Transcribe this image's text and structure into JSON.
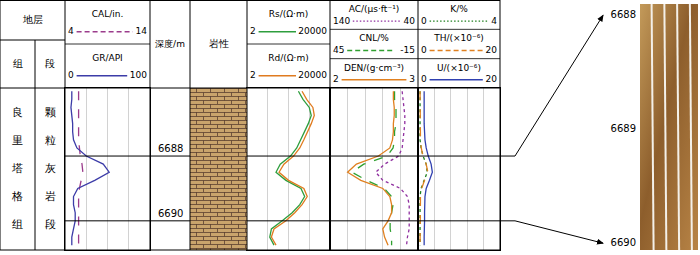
{
  "chart_data": {
    "type": "well_log",
    "header": {
      "strata": "地层",
      "formation": "组",
      "member": "段",
      "depth": "深度/m",
      "lithology": "岩性"
    },
    "zones": [
      {
        "formation": "良里塔格组",
        "member": "颗粒灰岩段"
      }
    ],
    "depth": [
      6686,
      6686.25,
      6686.5,
      6686.75,
      6687,
      6687.25,
      6687.5,
      6687.75,
      6688,
      6688.25,
      6688.5,
      6688.75,
      6689,
      6689.25,
      6689.5,
      6689.75,
      6690,
      6690.25,
      6690.5,
      6690.75
    ],
    "ylim": [
      6685.9,
      6690.9
    ],
    "yticks": [
      6688,
      6690
    ],
    "tracks": [
      {
        "grid": true,
        "tick_labels": false,
        "xticks": [
          4,
          6.5,
          9,
          11.5,
          14
        ],
        "series": [
          {
            "name": "CAL/in.",
            "color": "#9b3c8c",
            "line_style": "dash",
            "xlim": [
              4,
              14
            ],
            "values": [
              5.6,
              5.6,
              5.6,
              5.6,
              5.6,
              5.6,
              5.6,
              5.7,
              5.8,
              6.0,
              6.1,
              5.9,
              5.7,
              5.6,
              5.6,
              5.6,
              5.6,
              5.6,
              5.6,
              5.6
            ]
          },
          {
            "name": "GR/API",
            "color": "#3c3ca8",
            "line_style": "solid",
            "xlim": [
              0,
              100
            ],
            "values": [
              8,
              8,
              7,
              8,
              9,
              9,
              10,
              14,
              25,
              45,
              52,
              35,
              15,
              10,
              10,
              12,
              12,
              10,
              8,
              8
            ]
          }
        ]
      },
      {
        "log": "x",
        "grid": true,
        "tick_labels": false,
        "xticks": [
          2,
          20,
          200,
          2000,
          20000
        ],
        "series": [
          {
            "name": "Rs/(Ω·m)",
            "color": "#2e9e3e",
            "line_style": "solid",
            "xlim": [
              2,
              20000
            ],
            "values": [
              600,
              1000,
              2000,
              2500,
              1800,
              1200,
              800,
              500,
              250,
              80,
              50,
              150,
              800,
              1200,
              700,
              300,
              100,
              30,
              25,
              40
            ]
          },
          {
            "name": "Rd/(Ω·m)",
            "color": "#e07b1f",
            "line_style": "solid",
            "xlim": [
              2,
              20000
            ],
            "values": [
              900,
              1500,
              3000,
              3500,
              2500,
              1700,
              1100,
              700,
              350,
              120,
              70,
              200,
              1100,
              1600,
              900,
              400,
              150,
              40,
              30,
              50
            ]
          }
        ]
      },
      {
        "grid": true,
        "tick_labels": false,
        "xticks": [
          140,
          120,
          100,
          80,
          60,
          40
        ],
        "series": [
          {
            "name": "AC/(μs·ft⁻¹)",
            "color": "#9030a0",
            "line_style": "dot",
            "xlim": [
              140,
              40
            ],
            "values": [
              58,
              57,
              56,
              55,
              55,
              56,
              57,
              58,
              62,
              78,
              88,
              80,
              60,
              52,
              50,
              50,
              50,
              50,
              52,
              53
            ]
          },
          {
            "name": "CNL/%",
            "color": "#30a030",
            "line_style": "dash",
            "xlim": [
              45,
              -15
            ],
            "values": [
              1,
              1,
              0,
              0,
              0,
              1,
              1,
              2,
              6,
              22,
              30,
              20,
              8,
              3,
              2,
              3,
              4,
              4,
              3,
              3
            ]
          },
          {
            "name": "DEN/(g·cm⁻³)",
            "color": "#e08020",
            "line_style": "solid",
            "xlim": [
              2,
              3
            ],
            "values": [
              2.72,
              2.72,
              2.73,
              2.73,
              2.72,
              2.72,
              2.71,
              2.68,
              2.55,
              2.3,
              2.2,
              2.35,
              2.6,
              2.68,
              2.7,
              2.7,
              2.66,
              2.6,
              2.62,
              2.66
            ]
          }
        ]
      },
      {
        "grid": true,
        "tick_labels": false,
        "xticks": [
          0,
          0.8,
          1.6,
          2.4,
          3.2,
          4
        ],
        "series": [
          {
            "name": "K/%",
            "color": "#208020",
            "line_style": "dot",
            "xlim": [
              0,
              4
            ],
            "values": [
              0.1,
              0.1,
              0.1,
              0.1,
              0.1,
              0.1,
              0.1,
              0.15,
              0.25,
              0.4,
              0.45,
              0.3,
              0.15,
              0.1,
              0.1,
              0.1,
              0.1,
              0.1,
              0.1,
              0.1
            ]
          },
          {
            "name": "TH/(×10⁻⁶)",
            "color": "#e08020",
            "line_style": "dash",
            "xlim": [
              0,
              20
            ],
            "values": [
              0.5,
              0.5,
              0.5,
              0.5,
              0.5,
              0.5,
              0.6,
              0.8,
              1.2,
              2.0,
              2.4,
              1.6,
              0.9,
              0.6,
              0.6,
              0.6,
              0.6,
              0.5,
              0.5,
              0.5
            ]
          },
          {
            "name": "U/(×10⁻⁶)",
            "color": "#3040b0",
            "line_style": "solid",
            "xlim": [
              0,
              20
            ],
            "values": [
              1.5,
              1.5,
              1.4,
              1.5,
              1.5,
              1.6,
              1.7,
              2,
              2.5,
              3.2,
              3.5,
              2.8,
              2,
              1.7,
              1.6,
              1.6,
              1.6,
              1.5,
              1.5,
              1.5
            ]
          }
        ]
      }
    ],
    "core_image": {
      "ylim": [
        6687.9,
        6690.06
      ],
      "yticks": [
        6688,
        6689,
        6690
      ]
    }
  }
}
